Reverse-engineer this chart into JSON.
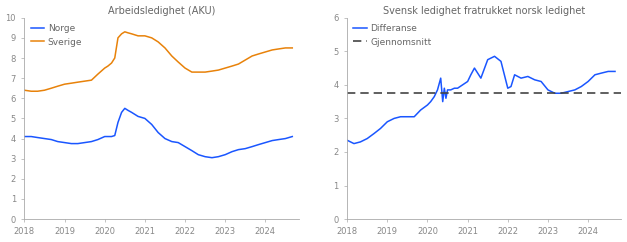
{
  "title_left": "Arbeidsledighet (AKU)",
  "title_right": "Svensk ledighet fratrukket norsk ledighet",
  "legend_norge": "Norge",
  "legend_sverige": "Sverige",
  "legend_diff": "Differanse",
  "legend_avg": "Gjennomsnitt",
  "color_norge": "#1a56ff",
  "color_sverige": "#e8820a",
  "color_diff": "#1a56ff",
  "color_avg": "#444444",
  "title_color": "#666666",
  "tick_color": "#888888",
  "spine_color": "#aaaaaa",
  "left_ylim": [
    0,
    10
  ],
  "left_yticks": [
    0,
    1,
    2,
    3,
    4,
    5,
    6,
    7,
    8,
    9,
    10
  ],
  "right_ylim": [
    0,
    6
  ],
  "right_yticks": [
    0,
    1,
    2,
    3,
    4,
    5,
    6
  ],
  "avg_value": 3.75,
  "norge_x": [
    2018.0,
    2018.17,
    2018.33,
    2018.5,
    2018.67,
    2018.83,
    2019.0,
    2019.17,
    2019.33,
    2019.5,
    2019.67,
    2019.83,
    2020.0,
    2020.08,
    2020.17,
    2020.25,
    2020.33,
    2020.42,
    2020.5,
    2020.58,
    2020.67,
    2020.75,
    2020.83,
    2021.0,
    2021.17,
    2021.33,
    2021.5,
    2021.67,
    2021.83,
    2022.0,
    2022.17,
    2022.33,
    2022.5,
    2022.67,
    2022.83,
    2023.0,
    2023.17,
    2023.33,
    2023.5,
    2023.67,
    2023.83,
    2024.0,
    2024.17,
    2024.33,
    2024.5,
    2024.67
  ],
  "norge_y": [
    4.1,
    4.1,
    4.05,
    4.0,
    3.95,
    3.85,
    3.8,
    3.75,
    3.75,
    3.8,
    3.85,
    3.95,
    4.1,
    4.1,
    4.1,
    4.15,
    4.8,
    5.3,
    5.5,
    5.4,
    5.3,
    5.2,
    5.1,
    5.0,
    4.7,
    4.3,
    4.0,
    3.85,
    3.8,
    3.6,
    3.4,
    3.2,
    3.1,
    3.05,
    3.1,
    3.2,
    3.35,
    3.45,
    3.5,
    3.6,
    3.7,
    3.8,
    3.9,
    3.95,
    4.0,
    4.1
  ],
  "sverige_x": [
    2018.0,
    2018.17,
    2018.33,
    2018.5,
    2018.67,
    2018.83,
    2019.0,
    2019.17,
    2019.33,
    2019.5,
    2019.67,
    2019.83,
    2020.0,
    2020.08,
    2020.17,
    2020.25,
    2020.33,
    2020.42,
    2020.5,
    2020.58,
    2020.67,
    2020.75,
    2020.83,
    2021.0,
    2021.17,
    2021.33,
    2021.5,
    2021.67,
    2021.83,
    2022.0,
    2022.17,
    2022.33,
    2022.5,
    2022.67,
    2022.83,
    2023.0,
    2023.17,
    2023.33,
    2023.5,
    2023.67,
    2023.83,
    2024.0,
    2024.17,
    2024.33,
    2024.5,
    2024.67
  ],
  "sverige_y": [
    6.4,
    6.35,
    6.35,
    6.4,
    6.5,
    6.6,
    6.7,
    6.75,
    6.8,
    6.85,
    6.9,
    7.2,
    7.5,
    7.6,
    7.75,
    8.0,
    9.0,
    9.2,
    9.3,
    9.25,
    9.2,
    9.15,
    9.1,
    9.1,
    9.0,
    8.8,
    8.5,
    8.1,
    7.8,
    7.5,
    7.3,
    7.3,
    7.3,
    7.35,
    7.4,
    7.5,
    7.6,
    7.7,
    7.9,
    8.1,
    8.2,
    8.3,
    8.4,
    8.45,
    8.5,
    8.5
  ],
  "diff_x": [
    2018.0,
    2018.17,
    2018.33,
    2018.5,
    2018.67,
    2018.83,
    2019.0,
    2019.17,
    2019.33,
    2019.5,
    2019.67,
    2019.83,
    2020.0,
    2020.08,
    2020.17,
    2020.25,
    2020.33,
    2020.38,
    2020.42,
    2020.46,
    2020.5,
    2020.58,
    2020.67,
    2020.75,
    2021.0,
    2021.08,
    2021.17,
    2021.33,
    2021.5,
    2021.67,
    2021.83,
    2022.0,
    2022.08,
    2022.17,
    2022.33,
    2022.5,
    2022.67,
    2022.83,
    2023.0,
    2023.17,
    2023.33,
    2023.5,
    2023.67,
    2023.83,
    2024.0,
    2024.17,
    2024.33,
    2024.5,
    2024.67
  ],
  "diff_y": [
    2.35,
    2.25,
    2.3,
    2.4,
    2.55,
    2.7,
    2.9,
    3.0,
    3.05,
    3.05,
    3.05,
    3.25,
    3.4,
    3.5,
    3.65,
    3.85,
    4.2,
    3.5,
    3.9,
    3.6,
    3.85,
    3.85,
    3.9,
    3.9,
    4.1,
    4.3,
    4.5,
    4.2,
    4.75,
    4.85,
    4.7,
    3.9,
    3.95,
    4.3,
    4.2,
    4.25,
    4.15,
    4.1,
    3.85,
    3.75,
    3.75,
    3.8,
    3.85,
    3.95,
    4.1,
    4.3,
    4.35,
    4.4,
    4.4
  ]
}
